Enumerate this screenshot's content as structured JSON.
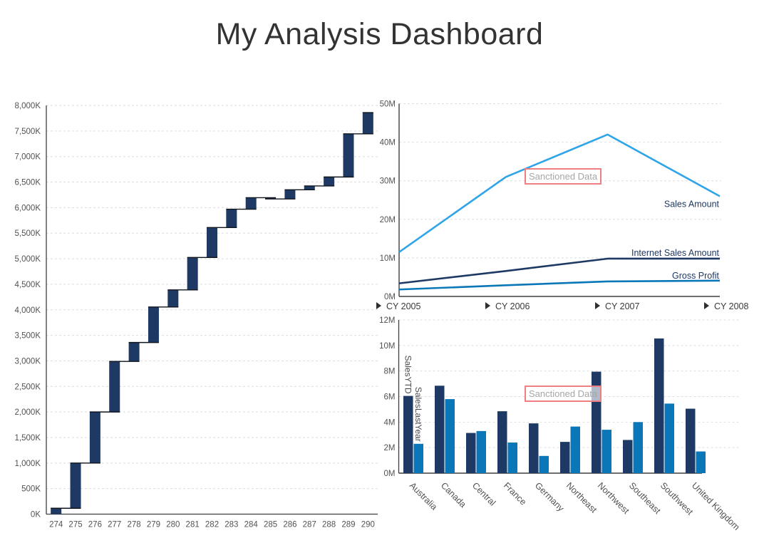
{
  "page": {
    "title": "My Analysis Dashboard"
  },
  "annotation_label": "Sanctioned Data",
  "colors": {
    "navy": "#1E3A64",
    "blue": "#0A77B8",
    "light_blue": "#2FA4E8",
    "axis": "#3F3F3F",
    "grid": "#DEDEDE",
    "tick_text": "#525252",
    "label_text": "#3A3A3A",
    "series_label_text": "#1F3864",
    "connector": "#10151C",
    "annotation_border": "#EF7F82",
    "annotation_text": "#A6A6A6",
    "arrow": "#2F2F2F",
    "title_text": "#333333"
  },
  "chart_data": [
    {
      "type": "bar",
      "subtype": "waterfall",
      "title": "",
      "categories": [
        "274",
        "275",
        "276",
        "277",
        "278",
        "279",
        "280",
        "281",
        "282",
        "283",
        "284",
        "285",
        "286",
        "287",
        "288",
        "289",
        "290"
      ],
      "values": [
        115,
        885,
        1000,
        990,
        370,
        695,
        335,
        635,
        585,
        360,
        225,
        -25,
        180,
        75,
        175,
        845,
        415
      ],
      "cumulative": [
        115,
        1000,
        2000,
        2990,
        3360,
        4055,
        4390,
        5025,
        5610,
        5970,
        6195,
        6170,
        6350,
        6425,
        6600,
        7445,
        7860
      ],
      "y_ticks": [
        "0K",
        "500K",
        "1,000K",
        "1,500K",
        "2,000K",
        "2,500K",
        "3,000K",
        "3,500K",
        "4,000K",
        "4,500K",
        "5,000K",
        "5,500K",
        "6,000K",
        "6,500K",
        "7,000K",
        "7,500K",
        "8,000K"
      ],
      "ylim": [
        0,
        8000
      ],
      "unit": "K",
      "grid": "dashed horizontal"
    },
    {
      "type": "line",
      "title": "",
      "x": [
        "CY 2005",
        "CY 2006",
        "CY 2007",
        "CY 2008"
      ],
      "series": [
        {
          "name": "Sales Amount",
          "values": [
            11.5,
            31,
            42,
            26
          ],
          "color": "#2FA4E8"
        },
        {
          "name": "Internet Sales Amount",
          "values": [
            3.4,
            6.6,
            9.8,
            9.8
          ],
          "color": "#1E3A64"
        },
        {
          "name": "Gross Profit",
          "values": [
            1.8,
            2.9,
            3.9,
            4.1
          ],
          "color": "#0A77B8"
        }
      ],
      "y_ticks": [
        "0M",
        "10M",
        "20M",
        "30M",
        "40M",
        "50M"
      ],
      "ylim": [
        0,
        50
      ],
      "unit": "M",
      "legend_position": "end-of-line labels",
      "annotation": "Sanctioned Data",
      "grid": "dashed horizontal"
    },
    {
      "type": "bar",
      "title": "",
      "categories": [
        "Australia",
        "Canada",
        "Central",
        "France",
        "Germany",
        "Northeast",
        "Northwest",
        "Southeast",
        "Southwest",
        "United Kingdom"
      ],
      "series": [
        {
          "name": "SalesYTD",
          "values": [
            6.05,
            6.85,
            3.15,
            4.85,
            3.9,
            2.45,
            7.95,
            2.6,
            10.55,
            5.05
          ],
          "color": "#1E3A64"
        },
        {
          "name": "SalesLastYear",
          "values": [
            2.3,
            5.8,
            3.3,
            2.4,
            1.35,
            3.65,
            3.4,
            4.0,
            5.45,
            1.7
          ],
          "color": "#0A77B8"
        }
      ],
      "y_ticks": [
        "0M",
        "2M",
        "4M",
        "6M",
        "8M",
        "10M",
        "12M"
      ],
      "ylim": [
        0,
        12
      ],
      "unit": "M",
      "legend_position": "rotated labels on first bars",
      "annotation": "Sanctioned Data",
      "grid": "dashed horizontal"
    }
  ]
}
